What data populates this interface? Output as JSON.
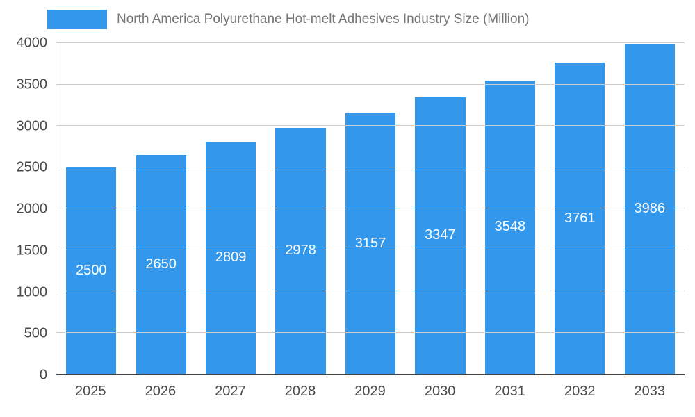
{
  "chart_data": {
    "type": "bar",
    "title": "North America Polyurethane Hot-melt Adhesives Industry Size (Million)",
    "categories": [
      "2025",
      "2026",
      "2027",
      "2028",
      "2029",
      "2030",
      "2031",
      "2032",
      "2033"
    ],
    "values": [
      2500,
      2650,
      2809,
      2978,
      3157,
      3347,
      3548,
      3761,
      3986
    ],
    "xlabel": "",
    "ylabel": "",
    "ylim": [
      0,
      4000
    ],
    "yticks": [
      0,
      500,
      1000,
      1500,
      2000,
      2500,
      3000,
      3500,
      4000
    ],
    "grid": true,
    "legend_position": "top-left",
    "colors": {
      "bar": "#3398ec",
      "bar_label": "#ffffff",
      "gridline": "#cccccc",
      "baseline": "#424242",
      "axis_text": "#4a4a4a",
      "title_text": "#757575",
      "background": "#ffffff"
    }
  }
}
